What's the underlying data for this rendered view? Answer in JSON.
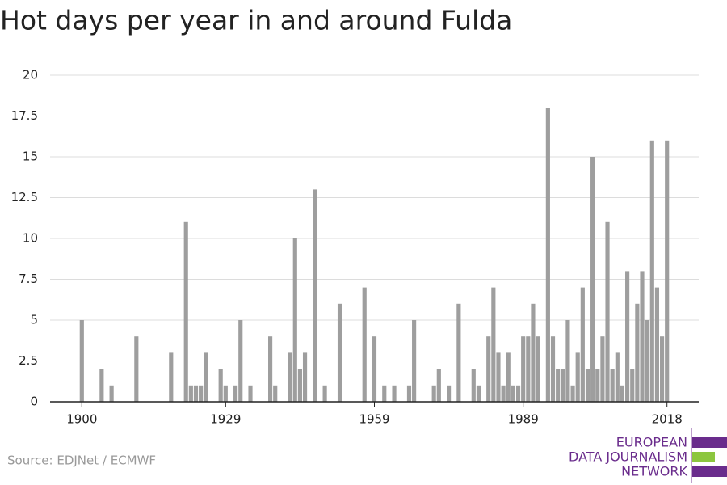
{
  "chart_data": {
    "type": "bar",
    "title": "Hot days per year in and around Fulda",
    "source": "Source: EDJNet / ECMWF",
    "logo": [
      "EUROPEAN",
      "DATA JOURNALISM",
      "NETWORK"
    ],
    "color": "#9e9e9e",
    "x": [
      1900,
      1901,
      1902,
      1903,
      1904,
      1905,
      1906,
      1907,
      1908,
      1909,
      1910,
      1911,
      1912,
      1913,
      1914,
      1915,
      1916,
      1917,
      1918,
      1919,
      1920,
      1921,
      1922,
      1923,
      1924,
      1925,
      1926,
      1927,
      1928,
      1929,
      1930,
      1931,
      1932,
      1933,
      1934,
      1935,
      1936,
      1937,
      1938,
      1939,
      1940,
      1941,
      1942,
      1943,
      1944,
      1945,
      1946,
      1947,
      1948,
      1949,
      1950,
      1951,
      1952,
      1953,
      1954,
      1955,
      1956,
      1957,
      1958,
      1959,
      1960,
      1961,
      1962,
      1963,
      1964,
      1965,
      1966,
      1967,
      1968,
      1969,
      1970,
      1971,
      1972,
      1973,
      1974,
      1975,
      1976,
      1977,
      1978,
      1979,
      1980,
      1981,
      1982,
      1983,
      1984,
      1985,
      1986,
      1987,
      1988,
      1989,
      1990,
      1991,
      1992,
      1993,
      1994,
      1995,
      1996,
      1997,
      1998,
      1999,
      2000,
      2001,
      2002,
      2003,
      2004,
      2005,
      2006,
      2007,
      2008,
      2009,
      2010,
      2011,
      2012,
      2013,
      2014,
      2015,
      2016,
      2017,
      2018
    ],
    "values": [
      5,
      0,
      0,
      0,
      2,
      0,
      1,
      0,
      0,
      0,
      0,
      4,
      0,
      0,
      0,
      0,
      0,
      0,
      3,
      0,
      0,
      11,
      1,
      1,
      1,
      3,
      0,
      0,
      2,
      1,
      0,
      1,
      5,
      0,
      1,
      0,
      0,
      0,
      4,
      1,
      0,
      0,
      3,
      10,
      2,
      3,
      0,
      13,
      0,
      1,
      0,
      0,
      6,
      0,
      0,
      0,
      0,
      7,
      0,
      4,
      0,
      1,
      0,
      1,
      0,
      0,
      1,
      5,
      0,
      0,
      0,
      1,
      2,
      0,
      1,
      0,
      6,
      0,
      0,
      2,
      1,
      0,
      4,
      7,
      3,
      1,
      3,
      1,
      1,
      4,
      4,
      6,
      4,
      0,
      18,
      4,
      2,
      2,
      5,
      1,
      3,
      7,
      2,
      15,
      2,
      4,
      11,
      2,
      3,
      1,
      8,
      2,
      6,
      8,
      5,
      16,
      7,
      4,
      16
    ],
    "xlim": [
      1893.6,
      2024.4
    ],
    "xticks": [
      1900,
      1929,
      1959,
      1989,
      2018
    ],
    "ylim": [
      0,
      20
    ],
    "yticks": [
      0,
      2.5,
      5,
      7.5,
      10,
      12.5,
      15,
      17.5,
      20
    ],
    "grid": true
  }
}
